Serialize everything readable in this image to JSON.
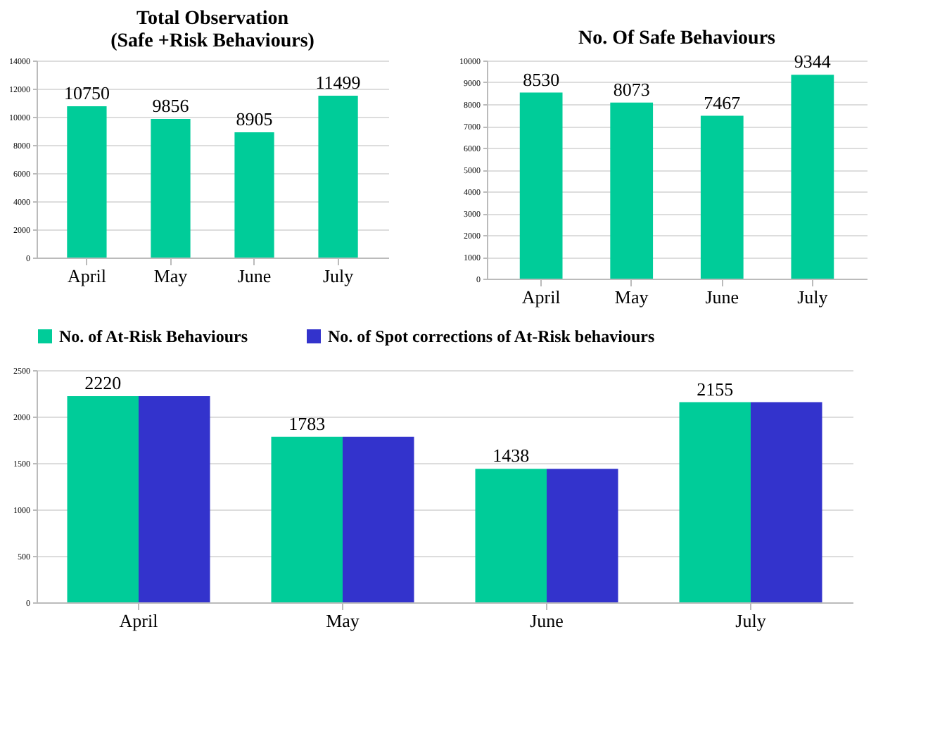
{
  "chart_data": [
    {
      "type": "bar",
      "title": "Total Observation (Safe +Risk Behaviours)",
      "categories": [
        "April",
        "May",
        "June",
        "July"
      ],
      "values": [
        10750,
        9856,
        8905,
        11499
      ],
      "color": "#00cc99",
      "ylim": [
        0,
        14000
      ],
      "yticks": [
        0,
        2000,
        4000,
        6000,
        8000,
        10000,
        12000,
        14000
      ],
      "grid": "y",
      "data_labels": true,
      "legend": false
    },
    {
      "type": "bar",
      "title": "No. Of Safe Behaviours",
      "categories": [
        "April",
        "May",
        "June",
        "July"
      ],
      "values": [
        8530,
        8073,
        7467,
        9344
      ],
      "color": "#00cc99",
      "ylim": [
        0,
        10000
      ],
      "yticks": [
        0,
        1000,
        2000,
        3000,
        4000,
        5000,
        6000,
        7000,
        8000,
        9000,
        10000
      ],
      "grid": "y",
      "data_labels": true,
      "legend": false
    },
    {
      "type": "bar",
      "categories": [
        "April",
        "May",
        "June",
        "July"
      ],
      "series": [
        {
          "name": "No. of At-Risk Behaviours",
          "color": "#00cc99",
          "values": [
            2220,
            1783,
            1438,
            2155
          ],
          "value_labels": [
            "2220",
            "1783",
            "1438",
            "2155"
          ]
        },
        {
          "name": "No. of Spot corrections of At-Risk behaviours",
          "color": "#3333cc",
          "values": [
            2220,
            1783,
            1438,
            2155
          ]
        }
      ],
      "ylim": [
        0,
        2500
      ],
      "yticks": [
        0,
        500,
        1000,
        1500,
        2000,
        2500
      ],
      "grid": "y",
      "legend": "top"
    }
  ]
}
